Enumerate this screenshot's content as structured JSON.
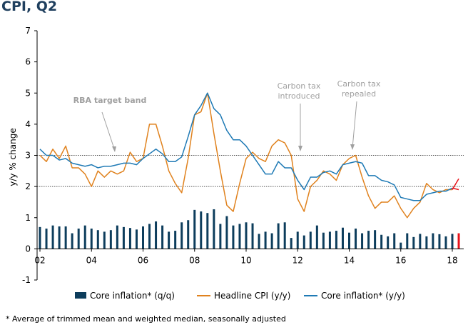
{
  "chart_data": {
    "type": "bar+line",
    "title": "CPI, Q2",
    "ylabel": "y/y % change",
    "ylim": [
      -1,
      7
    ],
    "yticks": [
      -1,
      0,
      1,
      2,
      3,
      4,
      5,
      6,
      7
    ],
    "xlim": [
      2002,
      2018.5
    ],
    "xticks": [
      2002,
      2004,
      2006,
      2008,
      2010,
      2012,
      2014,
      2016,
      2018
    ],
    "xtick_labels": [
      "02",
      "04",
      "06",
      "08",
      "10",
      "12",
      "14",
      "16",
      "18"
    ],
    "reference_lines": [
      2,
      3
    ],
    "band_label": "RBA target band",
    "annotations": [
      {
        "label_lines": [
          "Carbon tax",
          "introduced"
        ],
        "x": 2012.25
      },
      {
        "label_lines": [
          "Carbon tax",
          "repealed"
        ],
        "x": 2014.5
      }
    ],
    "grid": false,
    "legend_position": "bottom",
    "series": [
      {
        "name": "Core inflation* (q/q)",
        "type": "bar",
        "color": "#0d3d5c",
        "highlight_color": "#e8141b",
        "x": [
          2002.0,
          2002.25,
          2002.5,
          2002.75,
          2003.0,
          2003.25,
          2003.5,
          2003.75,
          2004.0,
          2004.25,
          2004.5,
          2004.75,
          2005.0,
          2005.25,
          2005.5,
          2005.75,
          2006.0,
          2006.25,
          2006.5,
          2006.75,
          2007.0,
          2007.25,
          2007.5,
          2007.75,
          2008.0,
          2008.25,
          2008.5,
          2008.75,
          2009.0,
          2009.25,
          2009.5,
          2009.75,
          2010.0,
          2010.25,
          2010.5,
          2010.75,
          2011.0,
          2011.25,
          2011.5,
          2011.75,
          2012.0,
          2012.25,
          2012.5,
          2012.75,
          2013.0,
          2013.25,
          2013.5,
          2013.75,
          2014.0,
          2014.25,
          2014.5,
          2014.75,
          2015.0,
          2015.25,
          2015.5,
          2015.75,
          2016.0,
          2016.25,
          2016.5,
          2016.75,
          2017.0,
          2017.25,
          2017.5,
          2017.75,
          2018.0,
          2018.25
        ],
        "values": [
          0.7,
          0.65,
          0.75,
          0.72,
          0.72,
          0.5,
          0.65,
          0.75,
          0.65,
          0.6,
          0.55,
          0.6,
          0.75,
          0.7,
          0.67,
          0.62,
          0.72,
          0.8,
          0.88,
          0.75,
          0.55,
          0.58,
          0.85,
          0.92,
          1.25,
          1.2,
          1.15,
          1.27,
          0.8,
          1.05,
          0.75,
          0.8,
          0.85,
          0.82,
          0.48,
          0.55,
          0.5,
          0.82,
          0.85,
          0.35,
          0.55,
          0.43,
          0.55,
          0.75,
          0.52,
          0.55,
          0.58,
          0.68,
          0.52,
          0.65,
          0.5,
          0.58,
          0.6,
          0.45,
          0.4,
          0.5,
          0.2,
          0.5,
          0.38,
          0.48,
          0.4,
          0.5,
          0.47,
          0.4,
          0.48,
          0.5
        ]
      },
      {
        "name": "Headline CPI (y/y)",
        "type": "line",
        "color": "#e0821e",
        "highlight_color": "#e8141b",
        "x": [
          2002.0,
          2002.25,
          2002.5,
          2002.75,
          2003.0,
          2003.25,
          2003.5,
          2003.75,
          2004.0,
          2004.25,
          2004.5,
          2004.75,
          2005.0,
          2005.25,
          2005.5,
          2005.75,
          2006.0,
          2006.25,
          2006.5,
          2006.75,
          2007.0,
          2007.25,
          2007.5,
          2007.75,
          2008.0,
          2008.25,
          2008.5,
          2008.75,
          2009.0,
          2009.25,
          2009.5,
          2009.75,
          2010.0,
          2010.25,
          2010.5,
          2010.75,
          2011.0,
          2011.25,
          2011.5,
          2011.75,
          2012.0,
          2012.25,
          2012.5,
          2012.75,
          2013.0,
          2013.25,
          2013.5,
          2013.75,
          2014.0,
          2014.25,
          2014.5,
          2014.75,
          2015.0,
          2015.25,
          2015.5,
          2015.75,
          2016.0,
          2016.25,
          2016.5,
          2016.75,
          2017.0,
          2017.25,
          2017.5,
          2017.75,
          2018.0,
          2018.25
        ],
        "values": [
          3.0,
          2.8,
          3.2,
          2.9,
          3.3,
          2.6,
          2.6,
          2.4,
          2.0,
          2.5,
          2.3,
          2.5,
          2.4,
          2.5,
          3.1,
          2.8,
          2.9,
          4.0,
          4.0,
          3.3,
          2.5,
          2.1,
          1.8,
          2.9,
          4.3,
          4.4,
          5.0,
          3.7,
          2.5,
          1.4,
          1.2,
          2.1,
          2.9,
          3.1,
          2.9,
          2.8,
          3.3,
          3.5,
          3.4,
          3.0,
          1.6,
          1.2,
          2.0,
          2.2,
          2.5,
          2.4,
          2.2,
          2.7,
          2.9,
          3.0,
          2.3,
          1.7,
          1.3,
          1.5,
          1.5,
          1.7,
          1.3,
          1.0,
          1.3,
          1.5,
          2.1,
          1.9,
          1.8,
          1.9,
          1.9,
          2.25
        ]
      },
      {
        "name": "Core inflation* (y/y)",
        "type": "line",
        "color": "#1f7ab5",
        "highlight_color": "#e8141b",
        "x": [
          2002.0,
          2002.25,
          2002.5,
          2002.75,
          2003.0,
          2003.25,
          2003.5,
          2003.75,
          2004.0,
          2004.25,
          2004.5,
          2004.75,
          2005.0,
          2005.25,
          2005.5,
          2005.75,
          2006.0,
          2006.25,
          2006.5,
          2006.75,
          2007.0,
          2007.25,
          2007.5,
          2007.75,
          2008.0,
          2008.25,
          2008.5,
          2008.75,
          2009.0,
          2009.25,
          2009.5,
          2009.75,
          2010.0,
          2010.25,
          2010.5,
          2010.75,
          2011.0,
          2011.25,
          2011.5,
          2011.75,
          2012.0,
          2012.25,
          2012.5,
          2012.75,
          2013.0,
          2013.25,
          2013.5,
          2013.75,
          2014.0,
          2014.25,
          2014.5,
          2014.75,
          2015.0,
          2015.25,
          2015.5,
          2015.75,
          2016.0,
          2016.25,
          2016.5,
          2016.75,
          2017.0,
          2017.25,
          2017.5,
          2017.75,
          2018.0,
          2018.25
        ],
        "values": [
          3.2,
          3.0,
          3.0,
          2.85,
          2.9,
          2.75,
          2.7,
          2.65,
          2.7,
          2.6,
          2.65,
          2.65,
          2.7,
          2.75,
          2.75,
          2.7,
          2.9,
          3.05,
          3.2,
          3.05,
          2.8,
          2.8,
          2.95,
          3.6,
          4.3,
          4.6,
          5.0,
          4.5,
          4.3,
          3.8,
          3.5,
          3.5,
          3.3,
          3.0,
          2.7,
          2.4,
          2.4,
          2.8,
          2.6,
          2.6,
          2.2,
          1.9,
          2.3,
          2.3,
          2.45,
          2.5,
          2.4,
          2.7,
          2.75,
          2.8,
          2.75,
          2.35,
          2.35,
          2.2,
          2.15,
          2.05,
          1.65,
          1.6,
          1.55,
          1.55,
          1.75,
          1.8,
          1.85,
          1.85,
          1.95,
          1.9
        ]
      }
    ]
  },
  "footnote": "* Average of trimmed mean and weighted median, seasonally adjusted"
}
